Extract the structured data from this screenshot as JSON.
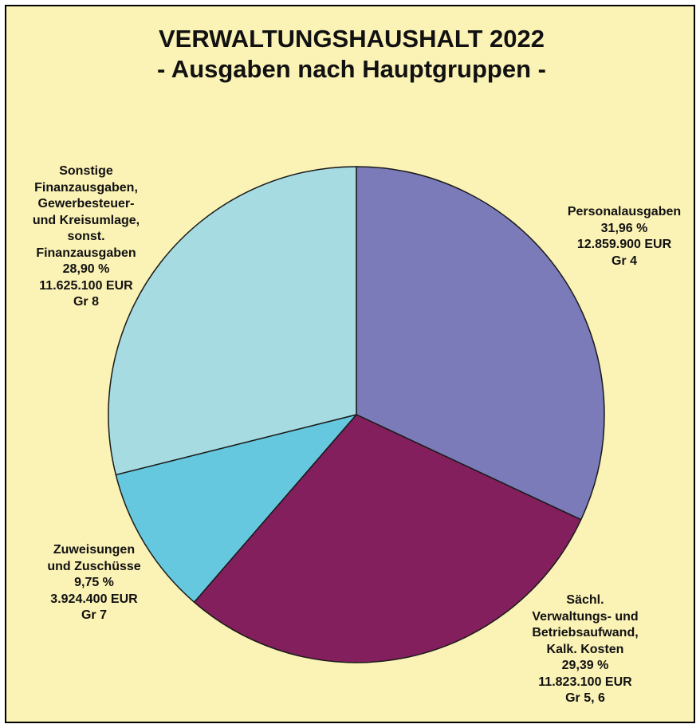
{
  "colors": {
    "background": "#fbf2b6",
    "border": "#000000",
    "slice_outline": "#1a1a1a"
  },
  "chart_data": {
    "type": "pie",
    "title": "VERWALTUNGSHAUSHALT 2022",
    "subtitle": "- Ausgaben nach Hauptgruppen -",
    "slices": [
      {
        "label_lines": [
          "Personalausgaben"
        ],
        "percent": 31.96,
        "percent_label": "31,96 %",
        "amount_label": "12.859.900 EUR",
        "group_label": "Gr 4",
        "color": "#7a7bb8"
      },
      {
        "label_lines": [
          "Sächl.",
          "Verwaltungs- und",
          "Betriebsaufwand,",
          "Kalk. Kosten"
        ],
        "percent": 29.39,
        "percent_label": "29,39 %",
        "amount_label": "11.823.100 EUR",
        "group_label": "Gr 5, 6",
        "color": "#821f5c"
      },
      {
        "label_lines": [
          "Zuweisungen",
          "und Zuschüsse"
        ],
        "percent": 9.75,
        "percent_label": "9,75 %",
        "amount_label": "3.924.400 EUR",
        "group_label": "Gr 7",
        "color": "#66c8de"
      },
      {
        "label_lines": [
          "Sonstige",
          "Finanzausgaben,",
          "Gewerbesteuer-",
          "und Kreisumlage,",
          "sonst.",
          "Finanzausgaben"
        ],
        "percent": 28.9,
        "percent_label": "28,90 %",
        "amount_label": "11.625.100 EUR",
        "group_label": "Gr 8",
        "color": "#a6dbe2"
      }
    ],
    "start_angle_deg": 0,
    "direction": "clockwise",
    "legend": "none"
  }
}
